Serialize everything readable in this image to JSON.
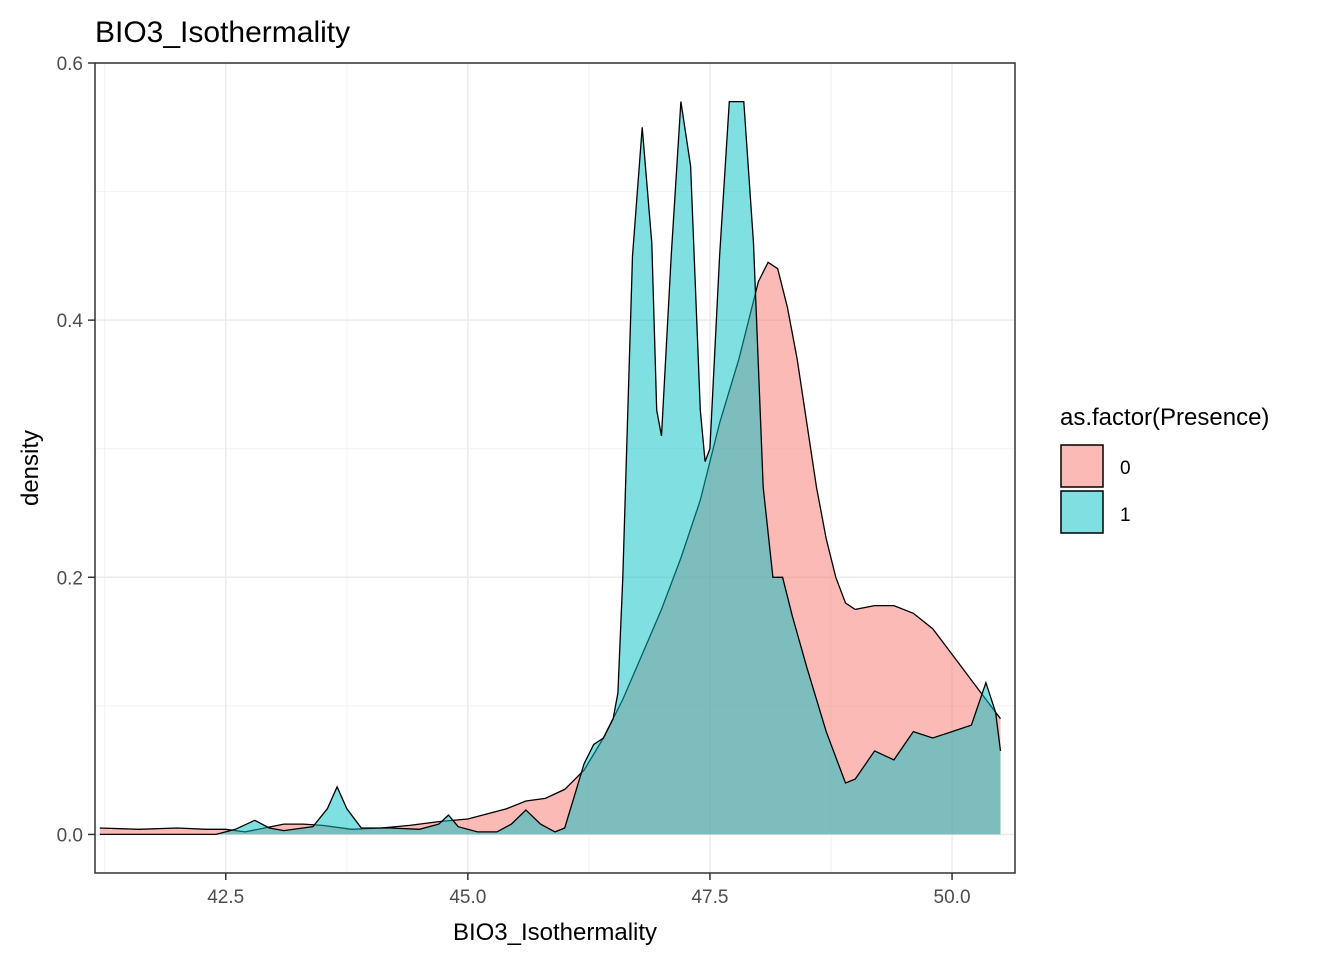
{
  "chart_data": {
    "type": "area",
    "title": "BIO3_Isothermality",
    "xlabel": "BIO3_Isothermality",
    "ylabel": "density",
    "xlim": [
      41.15,
      50.65
    ],
    "ylim": [
      -0.03,
      0.6
    ],
    "xticks": [
      42.5,
      45.0,
      47.5,
      50.0
    ],
    "xtick_labels": [
      "42.5",
      "45.0",
      "47.5",
      "50.0"
    ],
    "yticks": [
      0.0,
      0.2,
      0.4,
      0.6
    ],
    "ytick_labels": [
      "0.0",
      "0.2",
      "0.4",
      "0.6"
    ],
    "grid": true,
    "legend": {
      "title": "as.factor(Presence)",
      "position": "right"
    },
    "series": [
      {
        "name": "0",
        "color": "#F8766D",
        "x": [
          41.2,
          41.6,
          42.0,
          42.3,
          42.5,
          42.7,
          42.9,
          43.1,
          43.3,
          43.5,
          43.8,
          44.1,
          44.4,
          44.7,
          45.0,
          45.2,
          45.4,
          45.6,
          45.8,
          46.0,
          46.2,
          46.4,
          46.6,
          46.8,
          47.0,
          47.2,
          47.4,
          47.6,
          47.8,
          47.9,
          48.0,
          48.1,
          48.2,
          48.3,
          48.4,
          48.5,
          48.6,
          48.7,
          48.8,
          48.9,
          49.0,
          49.2,
          49.4,
          49.6,
          49.8,
          50.0,
          50.2,
          50.4,
          50.5
        ],
        "y": [
          0.005,
          0.004,
          0.005,
          0.004,
          0.004,
          0.002,
          0.005,
          0.008,
          0.008,
          0.007,
          0.004,
          0.005,
          0.007,
          0.01,
          0.012,
          0.016,
          0.02,
          0.026,
          0.028,
          0.035,
          0.05,
          0.075,
          0.105,
          0.14,
          0.175,
          0.215,
          0.26,
          0.32,
          0.37,
          0.4,
          0.43,
          0.445,
          0.44,
          0.41,
          0.37,
          0.32,
          0.27,
          0.23,
          0.2,
          0.18,
          0.175,
          0.178,
          0.178,
          0.172,
          0.16,
          0.14,
          0.12,
          0.1,
          0.09
        ]
      },
      {
        "name": "1",
        "color": "#00BFC4",
        "x": [
          41.2,
          42.4,
          42.6,
          42.8,
          42.95,
          43.1,
          43.4,
          43.55,
          43.65,
          43.75,
          43.9,
          44.2,
          44.5,
          44.7,
          44.8,
          44.9,
          45.1,
          45.3,
          45.45,
          45.6,
          45.75,
          45.9,
          46.0,
          46.1,
          46.2,
          46.3,
          46.4,
          46.5,
          46.55,
          46.6,
          46.7,
          46.8,
          46.9,
          46.95,
          47.0,
          47.1,
          47.2,
          47.3,
          47.4,
          47.45,
          47.5,
          47.6,
          47.7,
          47.85,
          47.95,
          48.05,
          48.15,
          48.25,
          48.35,
          48.5,
          48.7,
          48.9,
          49.0,
          49.2,
          49.4,
          49.6,
          49.8,
          50.0,
          50.2,
          50.35,
          50.45,
          50.5
        ],
        "y": [
          0.0,
          0.0,
          0.004,
          0.011,
          0.005,
          0.003,
          0.006,
          0.02,
          0.037,
          0.02,
          0.005,
          0.005,
          0.004,
          0.008,
          0.015,
          0.006,
          0.002,
          0.002,
          0.008,
          0.019,
          0.008,
          0.002,
          0.005,
          0.03,
          0.055,
          0.07,
          0.075,
          0.09,
          0.11,
          0.2,
          0.45,
          0.55,
          0.46,
          0.33,
          0.31,
          0.45,
          0.57,
          0.52,
          0.33,
          0.29,
          0.3,
          0.45,
          0.57,
          0.57,
          0.46,
          0.27,
          0.2,
          0.2,
          0.17,
          0.13,
          0.08,
          0.04,
          0.043,
          0.065,
          0.058,
          0.08,
          0.075,
          0.08,
          0.085,
          0.118,
          0.095,
          0.065
        ]
      }
    ]
  }
}
